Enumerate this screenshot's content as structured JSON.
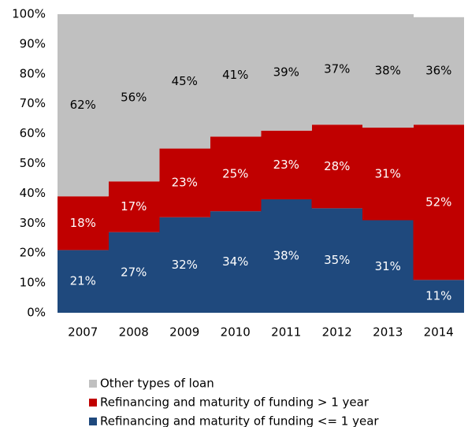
{
  "chart_data": {
    "type": "stacked_bar",
    "categories": [
      "2007",
      "2008",
      "2009",
      "2010",
      "2011",
      "2012",
      "2013",
      "2014"
    ],
    "series": [
      {
        "name": "Refinancing and maturity of funding <= 1 year",
        "color": "#1f497d",
        "label_color": "#ffffff",
        "values": [
          21,
          27,
          32,
          34,
          38,
          35,
          31,
          11
        ],
        "value_labels": [
          "21%",
          "27%",
          "32%",
          "34%",
          "38%",
          "35%",
          "31%",
          "11%"
        ]
      },
      {
        "name": "Refinancing and maturity of funding > 1 year",
        "color": "#c00000",
        "label_color": "#ffffff",
        "values": [
          18,
          17,
          23,
          25,
          23,
          28,
          31,
          52
        ],
        "value_labels": [
          "18%",
          "17%",
          "23%",
          "25%",
          "23%",
          "28%",
          "31%",
          "52%"
        ]
      },
      {
        "name": "Other types of loan",
        "color": "#c0c0c0",
        "label_color": "#000000",
        "values": [
          62,
          56,
          45,
          41,
          39,
          37,
          38,
          36
        ],
        "value_labels": [
          "62%",
          "56%",
          "45%",
          "41%",
          "39%",
          "37%",
          "38%",
          "36%"
        ]
      }
    ],
    "ylim": [
      0,
      100
    ],
    "yticks": [
      {
        "value": 0,
        "label": "0%"
      },
      {
        "value": 10,
        "label": "10%"
      },
      {
        "value": 20,
        "label": "20%"
      },
      {
        "value": 30,
        "label": "30%"
      },
      {
        "value": 40,
        "label": "40%"
      },
      {
        "value": 50,
        "label": "50%"
      },
      {
        "value": 60,
        "label": "60%"
      },
      {
        "value": 70,
        "label": "70%"
      },
      {
        "value": 80,
        "label": "80%"
      },
      {
        "value": 90,
        "label": "90%"
      },
      {
        "value": 100,
        "label": "100%"
      }
    ],
    "legend": "bottom-left"
  }
}
